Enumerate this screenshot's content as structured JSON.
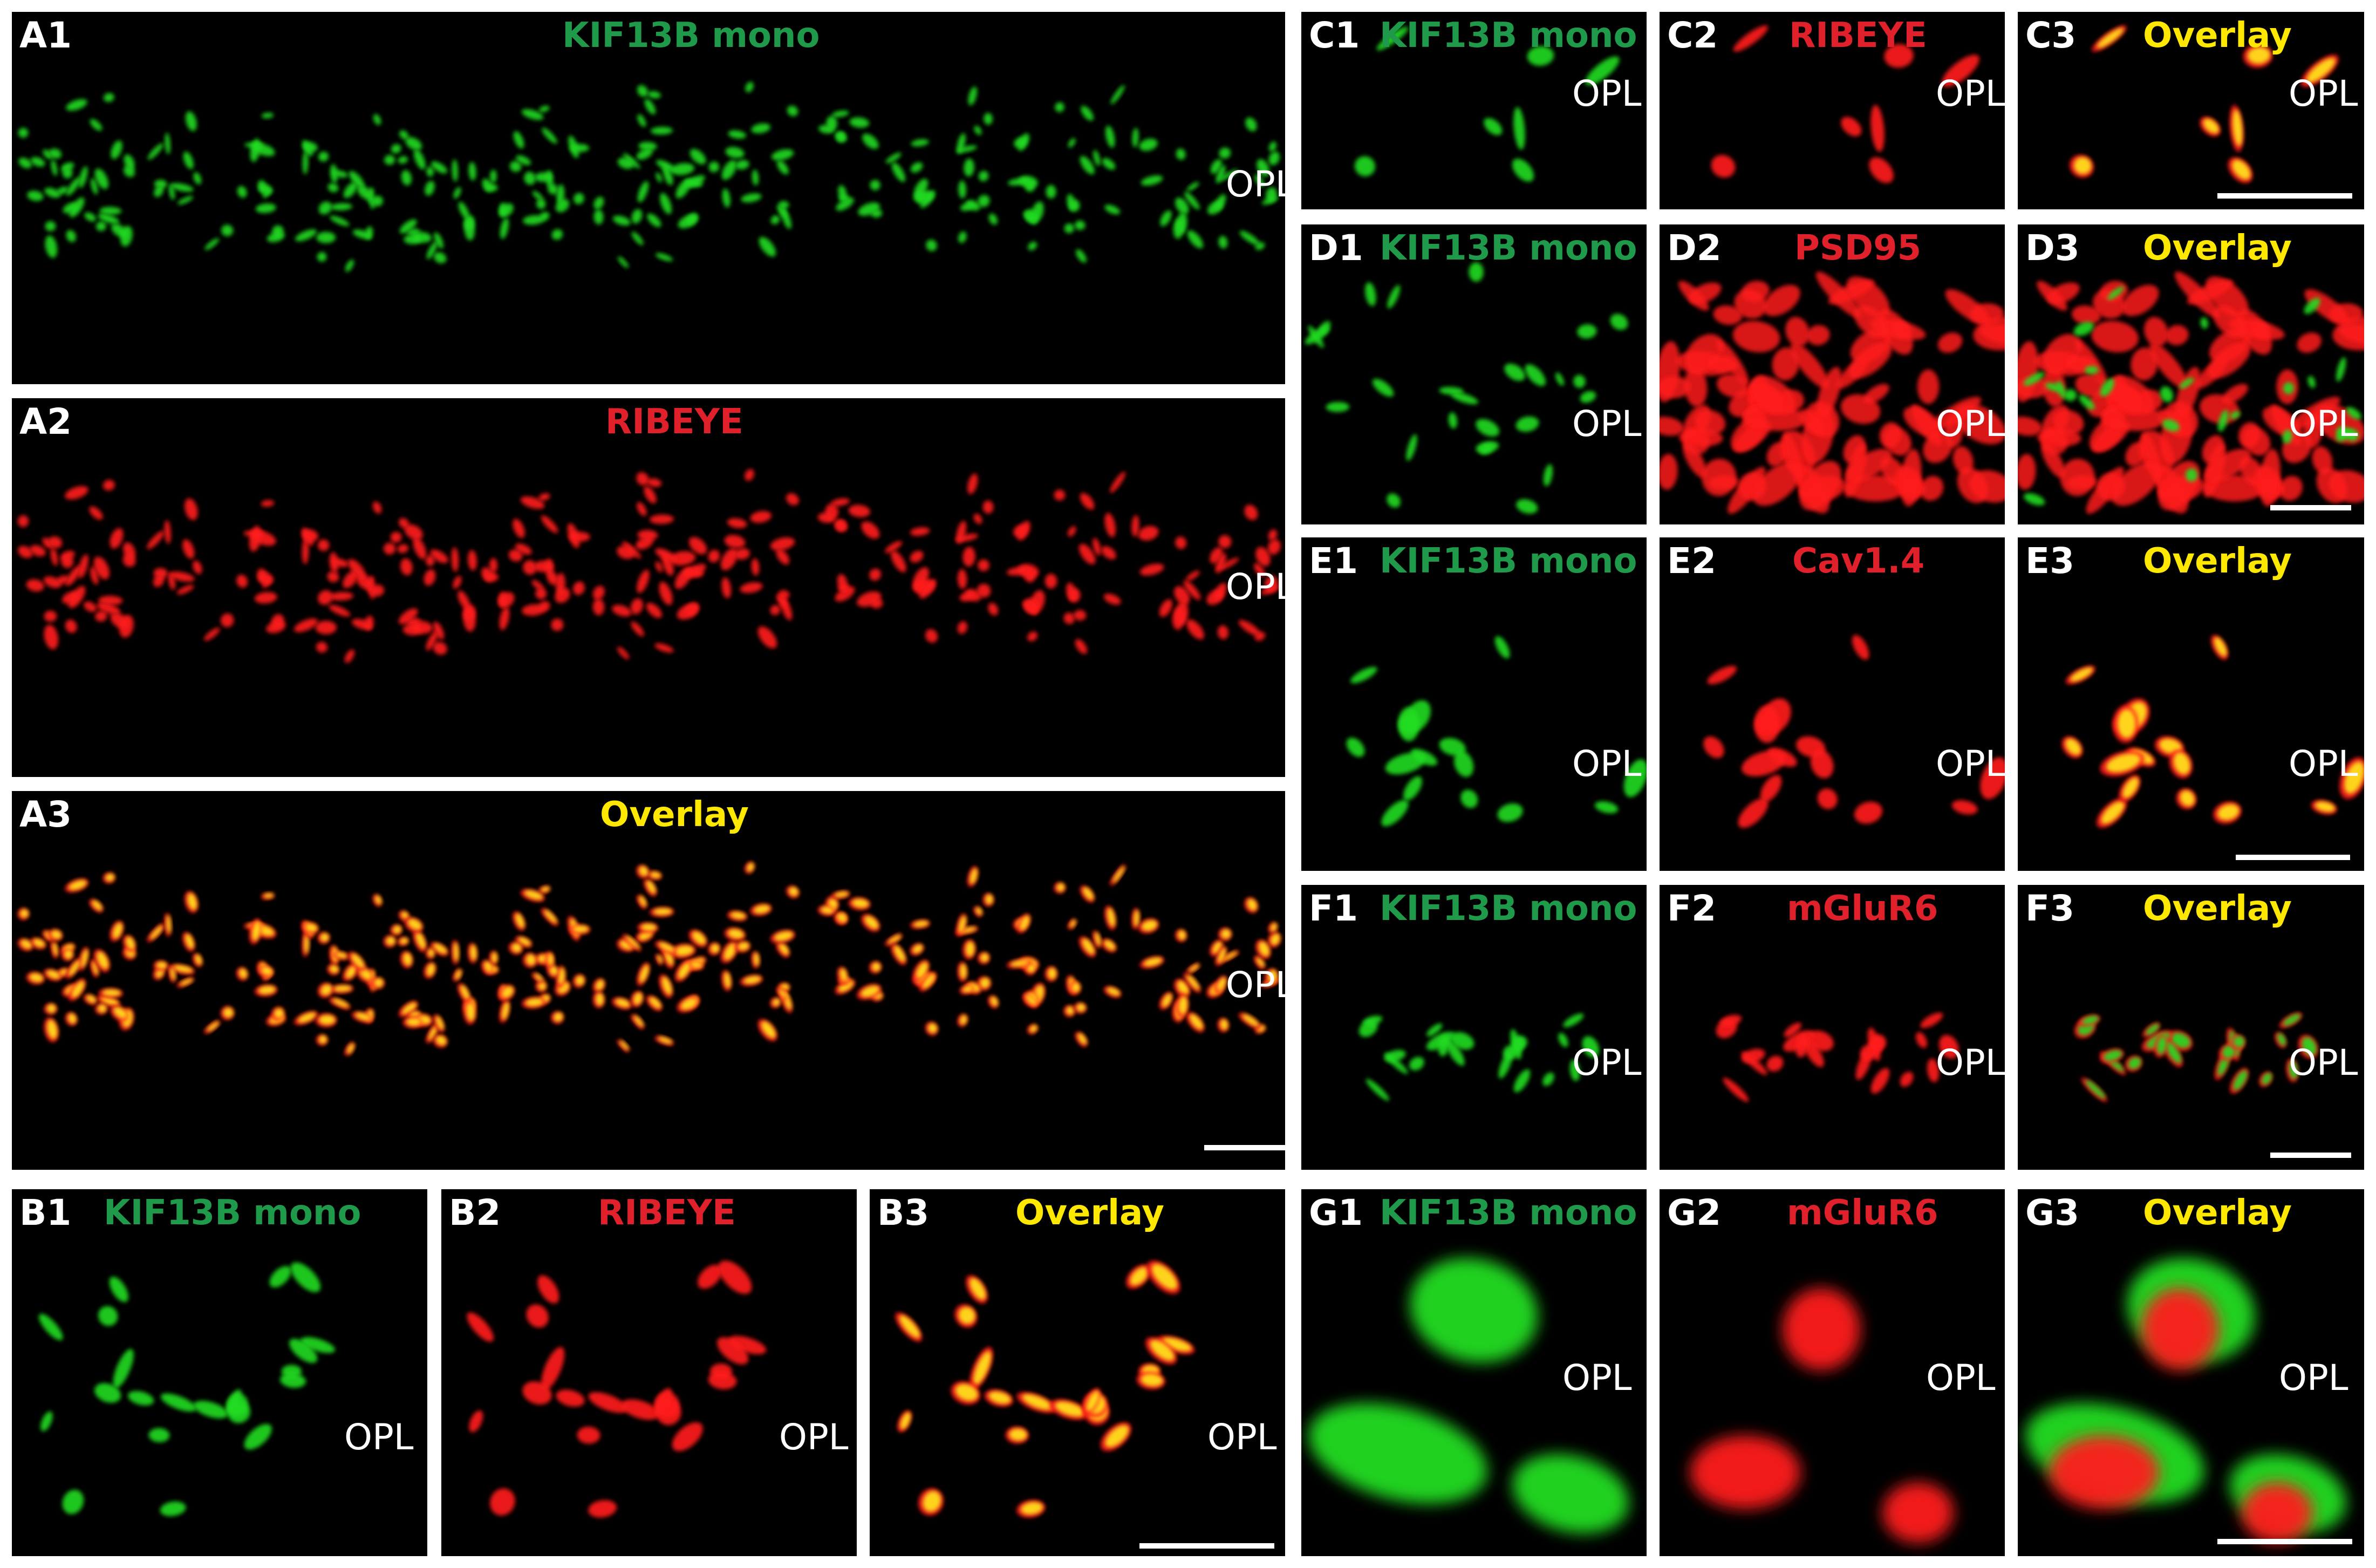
{
  "colors": {
    "green_label": "#1f9a4a",
    "red_label": "#e0202a",
    "yellow_label": "#ffe800",
    "green_signal": "#22dd22",
    "red_signal": "#ff1a1a",
    "yellow_signal": "#ffe81a"
  },
  "region_label": "OPL",
  "panels": [
    {
      "id": "A1",
      "label": "A1",
      "title": "KIF13B mono",
      "title_color": "green",
      "scale_bar": false
    },
    {
      "id": "A2",
      "label": "A2",
      "title": "RIBEYE",
      "title_color": "red",
      "scale_bar": false
    },
    {
      "id": "A3",
      "label": "A3",
      "title": "Overlay",
      "title_color": "yellow",
      "scale_bar": true
    },
    {
      "id": "B1",
      "label": "B1",
      "title": "KIF13B mono",
      "title_color": "green",
      "scale_bar": false
    },
    {
      "id": "B2",
      "label": "B2",
      "title": "RIBEYE",
      "title_color": "red",
      "scale_bar": false
    },
    {
      "id": "B3",
      "label": "B3",
      "title": "Overlay",
      "title_color": "yellow",
      "scale_bar": true
    },
    {
      "id": "C1",
      "label": "C1",
      "title": "KIF13B mono",
      "title_color": "green",
      "scale_bar": false
    },
    {
      "id": "C2",
      "label": "C2",
      "title": "RIBEYE",
      "title_color": "red",
      "scale_bar": false
    },
    {
      "id": "C3",
      "label": "C3",
      "title": "Overlay",
      "title_color": "yellow",
      "scale_bar": true
    },
    {
      "id": "D1",
      "label": "D1",
      "title": "KIF13B mono",
      "title_color": "green",
      "scale_bar": false
    },
    {
      "id": "D2",
      "label": "D2",
      "title": "PSD95",
      "title_color": "red",
      "scale_bar": false
    },
    {
      "id": "D3",
      "label": "D3",
      "title": "Overlay",
      "title_color": "yellow",
      "scale_bar": true
    },
    {
      "id": "E1",
      "label": "E1",
      "title": "KIF13B mono",
      "title_color": "green",
      "scale_bar": false
    },
    {
      "id": "E2",
      "label": "E2",
      "title": "Cav1.4",
      "title_color": "red",
      "scale_bar": false
    },
    {
      "id": "E3",
      "label": "E3",
      "title": "Overlay",
      "title_color": "yellow",
      "scale_bar": true
    },
    {
      "id": "F1",
      "label": "F1",
      "title": "KIF13B mono",
      "title_color": "green",
      "scale_bar": false
    },
    {
      "id": "F2",
      "label": "F2",
      "title": "mGluR6",
      "title_color": "red",
      "scale_bar": false
    },
    {
      "id": "F3",
      "label": "F3",
      "title": "Overlay",
      "title_color": "yellow",
      "scale_bar": true
    },
    {
      "id": "G1",
      "label": "G1",
      "title": "KIF13B mono",
      "title_color": "green",
      "scale_bar": false
    },
    {
      "id": "G2",
      "label": "G2",
      "title": "mGluR6",
      "title_color": "red",
      "scale_bar": false
    },
    {
      "id": "G3",
      "label": "G3",
      "title": "Overlay",
      "title_color": "yellow",
      "scale_bar": true
    }
  ]
}
